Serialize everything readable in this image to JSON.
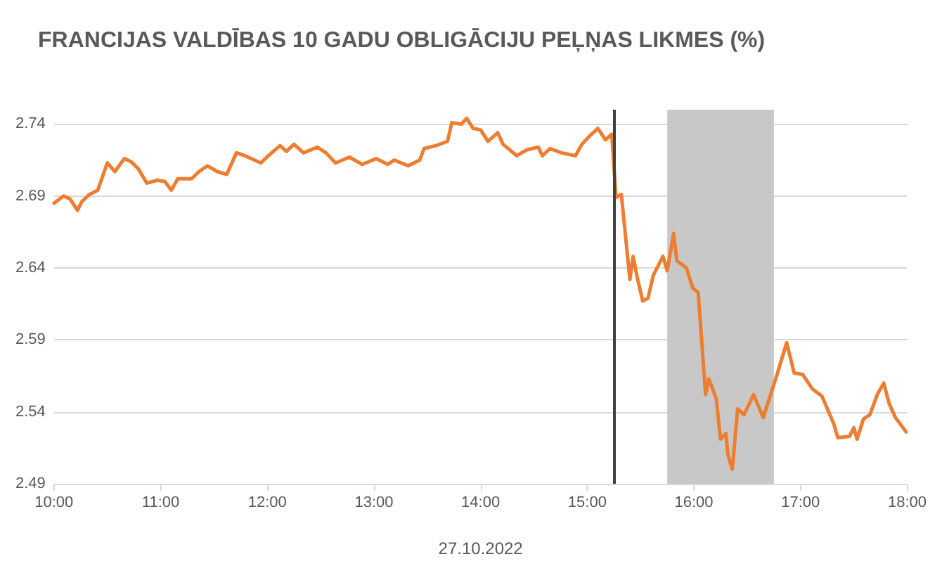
{
  "chart_data": {
    "type": "line",
    "title": "FRANCIJAS VALDĪBAS 10 GADU OBLIGĀCIJU PEĻŅAS LIKMES (%)",
    "xlabel": "27.10.2022",
    "x": [
      10.0,
      10.09,
      10.15,
      10.22,
      10.26,
      10.33,
      10.41,
      10.5,
      10.57,
      10.66,
      10.72,
      10.79,
      10.87,
      10.97,
      11.04,
      11.1,
      11.16,
      11.29,
      11.36,
      11.44,
      11.53,
      11.62,
      11.71,
      11.79,
      11.94,
      12.01,
      12.12,
      12.18,
      12.25,
      12.34,
      12.47,
      12.55,
      12.64,
      12.77,
      12.89,
      13.02,
      13.13,
      13.19,
      13.32,
      13.43,
      13.47,
      13.58,
      13.69,
      13.73,
      13.82,
      13.87,
      13.93,
      14.0,
      14.07,
      14.16,
      14.21,
      14.34,
      14.43,
      14.54,
      14.58,
      14.65,
      14.76,
      14.89,
      14.95,
      15.04,
      15.1,
      15.17,
      15.23,
      15.27,
      15.32,
      15.4,
      15.43,
      15.47,
      15.52,
      15.57,
      15.62,
      15.71,
      15.75,
      15.81,
      15.84,
      15.93,
      15.99,
      16.04,
      16.11,
      16.14,
      16.21,
      16.25,
      16.3,
      16.32,
      16.36,
      16.41,
      16.47,
      16.56,
      16.65,
      16.72,
      16.78,
      16.87,
      16.94,
      17.02,
      17.11,
      17.2,
      17.31,
      17.35,
      17.46,
      17.5,
      17.53,
      17.59,
      17.65,
      17.72,
      17.78,
      17.83,
      17.89,
      17.99
    ],
    "series": [
      {
        "color": "#ed7d31",
        "values": [
          2.685,
          2.69,
          2.688,
          2.68,
          2.686,
          2.691,
          2.694,
          2.713,
          2.707,
          2.716,
          2.714,
          2.709,
          2.699,
          2.701,
          2.7,
          2.694,
          2.702,
          2.702,
          2.707,
          2.711,
          2.707,
          2.705,
          2.72,
          2.718,
          2.713,
          2.718,
          2.725,
          2.721,
          2.726,
          2.72,
          2.724,
          2.72,
          2.713,
          2.717,
          2.712,
          2.716,
          2.712,
          2.715,
          2.711,
          2.715,
          2.723,
          2.725,
          2.728,
          2.741,
          2.74,
          2.744,
          2.737,
          2.736,
          2.728,
          2.734,
          2.726,
          2.718,
          2.722,
          2.724,
          2.718,
          2.723,
          2.72,
          2.718,
          2.726,
          2.733,
          2.737,
          2.729,
          2.733,
          2.689,
          2.691,
          2.632,
          2.648,
          2.633,
          2.617,
          2.619,
          2.635,
          2.648,
          2.638,
          2.664,
          2.645,
          2.64,
          2.626,
          2.623,
          2.552,
          2.563,
          2.549,
          2.521,
          2.525,
          2.51,
          2.5,
          2.542,
          2.538,
          2.552,
          2.536,
          2.552,
          2.566,
          2.588,
          2.567,
          2.566,
          2.556,
          2.551,
          2.532,
          2.522,
          2.523,
          2.529,
          2.521,
          2.535,
          2.538,
          2.552,
          2.56,
          2.546,
          2.536,
          2.526
        ]
      }
    ],
    "xlim": [
      10,
      18
    ],
    "xticks": [
      {
        "value": 10,
        "label": "10:00"
      },
      {
        "value": 11,
        "label": "11:00"
      },
      {
        "value": 12,
        "label": "12:00"
      },
      {
        "value": 13,
        "label": "13:00"
      },
      {
        "value": 14,
        "label": "14:00"
      },
      {
        "value": 15,
        "label": "15:00"
      },
      {
        "value": 16,
        "label": "16:00"
      },
      {
        "value": 17,
        "label": "17:00"
      },
      {
        "value": 18,
        "label": "18:00"
      }
    ],
    "ylim": [
      2.49,
      2.75
    ],
    "yticks": [
      2.49,
      2.54,
      2.59,
      2.64,
      2.69,
      2.74
    ],
    "ref_lines": [
      {
        "axis": "x",
        "value": 15.25,
        "color": "#404040",
        "line_style": "solid"
      }
    ],
    "bands": [
      {
        "axis": "x",
        "from": 15.75,
        "to": 16.75,
        "color": "#c8c8c8"
      }
    ],
    "grid": "y",
    "marker": "none",
    "line_style": "solid"
  }
}
